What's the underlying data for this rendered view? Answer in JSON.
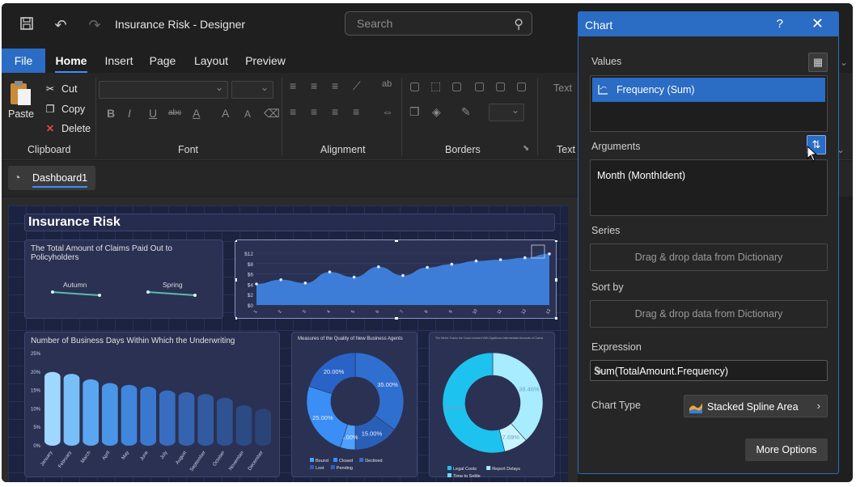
{
  "window": {
    "title": "Insurance Risk - Designer",
    "search_placeholder": "Search"
  },
  "menu": {
    "file": "File",
    "tabs": [
      "Home",
      "Insert",
      "Page",
      "Layout",
      "Preview"
    ]
  },
  "ribbon": {
    "clipboard": {
      "paste": "Paste",
      "cut": "Cut",
      "copy": "Copy",
      "delete": "Delete",
      "label": "Clipboard"
    },
    "font_label": "Font",
    "alignment_label": "Alignment",
    "borders_label": "Borders",
    "text_label": "Text",
    "text_combo": "Text"
  },
  "doc_tab": "Dashboard1",
  "dashboard": {
    "title": "Insurance Risk",
    "panels": {
      "claims": {
        "title": "The Total Amount of Claims Paid Out to Policyholders",
        "labels": [
          "Autumn",
          "Spring"
        ]
      },
      "area_chart": {
        "y_ticks": [
          "$12",
          "$8",
          "$6",
          "$4",
          "$2",
          "$0"
        ]
      },
      "business_days": {
        "title": "Number of Business Days Within Which the Underwriting",
        "y_ticks": [
          "25%",
          "20%",
          "15%",
          "10%",
          "5%",
          "0%"
        ]
      },
      "quality": {
        "title": "Measures of the Quality of New Business Agents",
        "legend": [
          "Bound",
          "Closed",
          "Declined",
          "Lost",
          "Pending"
        ]
      },
      "metric": {
        "title": "The Metric Tracks the Costs Involved With Significant Intermediate Amounts of Claims",
        "legend": [
          "Legal Costs",
          "Report Delays",
          "Time to Settle"
        ]
      }
    }
  },
  "chart_data": [
    {
      "type": "area",
      "x": [
        "1",
        "2",
        "3",
        "4",
        "5",
        "6",
        "7",
        "8",
        "9",
        "10",
        "11",
        "12",
        "13"
      ],
      "values": [
        6.5,
        7.8,
        6.8,
        10.2,
        8.6,
        11.8,
        9.1,
        11.6,
        12.6,
        13.6,
        14.0,
        14.6,
        15.8
      ],
      "ylim": [
        0,
        16
      ]
    },
    {
      "type": "bar",
      "categories": [
        "January",
        "February",
        "March",
        "April",
        "May",
        "June",
        "July",
        "August",
        "September",
        "October",
        "November",
        "December"
      ],
      "values": [
        20,
        19.5,
        18,
        17,
        16.5,
        16,
        15,
        14.5,
        14,
        13,
        11,
        10
      ],
      "ylim": [
        0,
        25
      ]
    },
    {
      "type": "pie",
      "labels": [
        "35.00%",
        "15.00%",
        "5.00%",
        "25.00%",
        "20.00%"
      ],
      "values": [
        35,
        15,
        5,
        25,
        20
      ]
    },
    {
      "type": "pie",
      "labels": [
        "38.46%",
        "7.69%",
        "53.85%"
      ],
      "values": [
        38.46,
        7.69,
        53.85
      ]
    }
  ],
  "chart_panel": {
    "title": "Chart",
    "help": "?",
    "values_label": "Values",
    "values_item": "Frequency (Sum)",
    "arguments_label": "Arguments",
    "arguments_item": "Month (MonthIdent)",
    "series_label": "Series",
    "series_drop": "Drag & drop data from Dictionary",
    "sortby_label": "Sort by",
    "sortby_drop": "Drag & drop data from Dictionary",
    "expression_label": "Expression",
    "expression_value": "Sum(TotalAmount.Frequency)",
    "charttype_label": "Chart Type",
    "charttype_value": "Stacked Spline Area",
    "more_options": "More Options"
  }
}
